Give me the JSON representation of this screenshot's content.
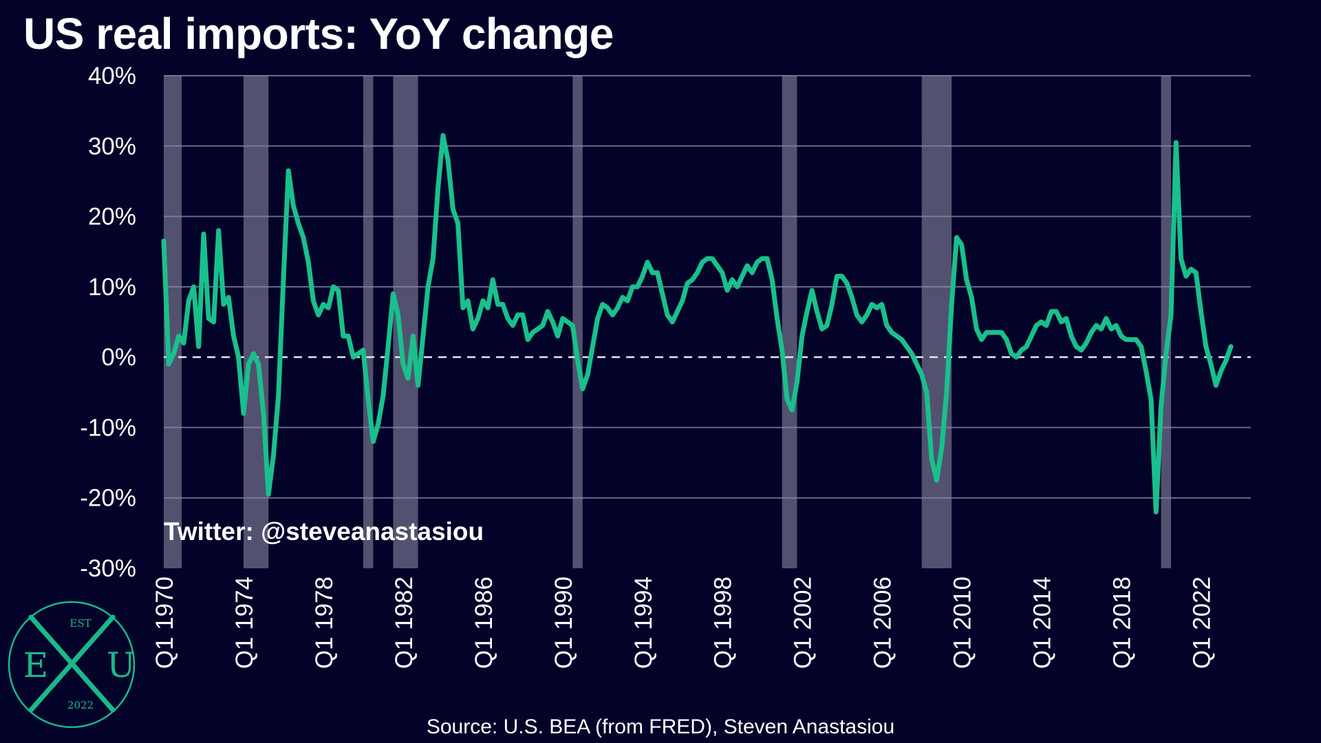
{
  "title": "US real imports: YoY change",
  "watermark": "Twitter: @steveanastasiou",
  "source": "Source: U.S. BEA (from FRED), Steven Anastasiou",
  "logo": {
    "top": "EST",
    "left": "E",
    "center": "X",
    "right": "U",
    "bottom": "2022"
  },
  "colors": {
    "background": "#03032a",
    "line": "#19c08c",
    "recession": "#5b5b78",
    "grid": "#8c8ca8",
    "zero_line": "#e6e6ee"
  },
  "chart_data": {
    "type": "line",
    "title": "US real imports: YoY change",
    "xlabel": "",
    "ylabel": "",
    "ylim": [
      -30,
      40
    ],
    "yticks": [
      40,
      30,
      20,
      10,
      0,
      -10,
      -20,
      -30
    ],
    "ytick_labels": [
      "40%",
      "30%",
      "20%",
      "10%",
      "0%",
      "-10%",
      "-20%",
      "-30%"
    ],
    "xlim": [
      1970.0,
      2024.5
    ],
    "xtick_labels": [
      "Q1 1970",
      "Q1 1974",
      "Q1 1978",
      "Q1 1982",
      "Q1 1986",
      "Q1 1990",
      "Q1 1994",
      "Q1 1998",
      "Q1 2002",
      "Q1 2006",
      "Q1 2010",
      "Q1 2014",
      "Q1 2018",
      "Q1 2022"
    ],
    "grid": true,
    "zero_line": "dashed",
    "recessions": [
      [
        1970.0,
        1970.9
      ],
      [
        1974.0,
        1975.25
      ],
      [
        1980.0,
        1980.5
      ],
      [
        1981.5,
        1982.75
      ],
      [
        1990.5,
        1991.0
      ],
      [
        2001.0,
        2001.75
      ],
      [
        2008.0,
        2009.5
      ],
      [
        2020.0,
        2020.5
      ]
    ],
    "series": [
      {
        "name": "",
        "points": [
          [
            1970.0,
            16.5
          ],
          [
            1970.25,
            -1.0
          ],
          [
            1970.5,
            0.5
          ],
          [
            1970.75,
            3.0
          ],
          [
            1971.0,
            2.0
          ],
          [
            1971.25,
            8.0
          ],
          [
            1971.5,
            10.0
          ],
          [
            1971.75,
            1.5
          ],
          [
            1972.0,
            17.5
          ],
          [
            1972.25,
            5.5
          ],
          [
            1972.5,
            5.0
          ],
          [
            1972.75,
            18.0
          ],
          [
            1973.0,
            7.5
          ],
          [
            1973.25,
            8.5
          ],
          [
            1973.5,
            3.0
          ],
          [
            1973.75,
            0.0
          ],
          [
            1974.0,
            -8.0
          ],
          [
            1974.25,
            -1.0
          ],
          [
            1974.5,
            0.5
          ],
          [
            1974.75,
            -1.0
          ],
          [
            1975.0,
            -8.0
          ],
          [
            1975.25,
            -19.5
          ],
          [
            1975.5,
            -14.0
          ],
          [
            1975.75,
            -5.5
          ],
          [
            1976.0,
            11.0
          ],
          [
            1976.25,
            26.5
          ],
          [
            1976.5,
            21.5
          ],
          [
            1976.75,
            19.0
          ],
          [
            1977.0,
            17.0
          ],
          [
            1977.25,
            13.5
          ],
          [
            1977.5,
            8.0
          ],
          [
            1977.75,
            6.0
          ],
          [
            1978.0,
            7.5
          ],
          [
            1978.25,
            7.0
          ],
          [
            1978.5,
            10.0
          ],
          [
            1978.75,
            9.5
          ],
          [
            1979.0,
            3.0
          ],
          [
            1979.25,
            3.0
          ],
          [
            1979.5,
            0.0
          ],
          [
            1979.75,
            0.5
          ],
          [
            1980.0,
            1.0
          ],
          [
            1980.25,
            -6.0
          ],
          [
            1980.5,
            -12.0
          ],
          [
            1980.75,
            -9.5
          ],
          [
            1981.0,
            -5.5
          ],
          [
            1981.25,
            1.5
          ],
          [
            1981.5,
            9.0
          ],
          [
            1981.75,
            6.0
          ],
          [
            1982.0,
            -1.0
          ],
          [
            1982.25,
            -3.0
          ],
          [
            1982.5,
            3.0
          ],
          [
            1982.75,
            -4.0
          ],
          [
            1983.0,
            3.0
          ],
          [
            1983.25,
            10.0
          ],
          [
            1983.5,
            14.0
          ],
          [
            1983.75,
            24.0
          ],
          [
            1984.0,
            31.5
          ],
          [
            1984.25,
            28.0
          ],
          [
            1984.5,
            21.0
          ],
          [
            1984.75,
            19.0
          ],
          [
            1985.0,
            7.0
          ],
          [
            1985.25,
            8.0
          ],
          [
            1985.5,
            4.0
          ],
          [
            1985.75,
            5.5
          ],
          [
            1986.0,
            8.0
          ],
          [
            1986.25,
            7.0
          ],
          [
            1986.5,
            11.0
          ],
          [
            1986.75,
            7.5
          ],
          [
            1987.0,
            7.5
          ],
          [
            1987.25,
            5.5
          ],
          [
            1987.5,
            4.5
          ],
          [
            1987.75,
            6.0
          ],
          [
            1988.0,
            6.0
          ],
          [
            1988.25,
            2.5
          ],
          [
            1988.5,
            3.5
          ],
          [
            1988.75,
            4.0
          ],
          [
            1989.0,
            4.5
          ],
          [
            1989.25,
            6.5
          ],
          [
            1989.5,
            5.0
          ],
          [
            1989.75,
            3.0
          ],
          [
            1990.0,
            5.5
          ],
          [
            1990.25,
            5.0
          ],
          [
            1990.5,
            4.5
          ],
          [
            1990.75,
            -0.5
          ],
          [
            1991.0,
            -4.5
          ],
          [
            1991.25,
            -2.5
          ],
          [
            1991.5,
            1.5
          ],
          [
            1991.75,
            5.5
          ],
          [
            1992.0,
            7.5
          ],
          [
            1992.25,
            7.0
          ],
          [
            1992.5,
            6.0
          ],
          [
            1992.75,
            7.0
          ],
          [
            1993.0,
            8.5
          ],
          [
            1993.25,
            8.0
          ],
          [
            1993.5,
            10.0
          ],
          [
            1993.75,
            10.0
          ],
          [
            1994.0,
            11.5
          ],
          [
            1994.25,
            13.5
          ],
          [
            1994.5,
            12.0
          ],
          [
            1994.75,
            12.0
          ],
          [
            1995.0,
            9.0
          ],
          [
            1995.25,
            6.0
          ],
          [
            1995.5,
            5.0
          ],
          [
            1995.75,
            6.5
          ],
          [
            1996.0,
            8.0
          ],
          [
            1996.25,
            10.5
          ],
          [
            1996.5,
            11.0
          ],
          [
            1996.75,
            12.0
          ],
          [
            1997.0,
            13.5
          ],
          [
            1997.25,
            14.0
          ],
          [
            1997.5,
            14.0
          ],
          [
            1997.75,
            13.0
          ],
          [
            1998.0,
            12.0
          ],
          [
            1998.25,
            9.5
          ],
          [
            1998.5,
            11.0
          ],
          [
            1998.75,
            10.0
          ],
          [
            1999.0,
            11.5
          ],
          [
            1999.25,
            13.0
          ],
          [
            1999.5,
            12.0
          ],
          [
            1999.75,
            13.5
          ],
          [
            2000.0,
            14.0
          ],
          [
            2000.25,
            14.0
          ],
          [
            2000.5,
            11.0
          ],
          [
            2000.75,
            5.5
          ],
          [
            2001.0,
            1.0
          ],
          [
            2001.25,
            -6.0
          ],
          [
            2001.5,
            -7.5
          ],
          [
            2001.75,
            -3.5
          ],
          [
            2002.0,
            3.0
          ],
          [
            2002.25,
            6.5
          ],
          [
            2002.5,
            9.5
          ],
          [
            2002.75,
            6.5
          ],
          [
            2003.0,
            4.0
          ],
          [
            2003.25,
            4.5
          ],
          [
            2003.5,
            7.5
          ],
          [
            2003.75,
            11.5
          ],
          [
            2004.0,
            11.5
          ],
          [
            2004.25,
            10.5
          ],
          [
            2004.5,
            8.5
          ],
          [
            2004.75,
            6.0
          ],
          [
            2005.0,
            5.0
          ],
          [
            2005.25,
            6.0
          ],
          [
            2005.5,
            7.5
          ],
          [
            2005.75,
            7.0
          ],
          [
            2006.0,
            7.5
          ],
          [
            2006.25,
            4.5
          ],
          [
            2006.5,
            3.5
          ],
          [
            2006.75,
            3.0
          ],
          [
            2007.0,
            2.5
          ],
          [
            2007.25,
            1.5
          ],
          [
            2007.5,
            0.5
          ],
          [
            2007.75,
            -1.0
          ],
          [
            2008.0,
            -2.5
          ],
          [
            2008.25,
            -5.0
          ],
          [
            2008.5,
            -14.5
          ],
          [
            2008.75,
            -17.5
          ],
          [
            2009.0,
            -13.0
          ],
          [
            2009.25,
            -5.0
          ],
          [
            2009.5,
            7.5
          ],
          [
            2009.75,
            17.0
          ],
          [
            2010.0,
            16.0
          ],
          [
            2010.25,
            11.0
          ],
          [
            2010.5,
            8.5
          ],
          [
            2010.75,
            4.0
          ],
          [
            2011.0,
            2.5
          ],
          [
            2011.25,
            3.5
          ],
          [
            2011.5,
            3.5
          ],
          [
            2011.75,
            3.5
          ],
          [
            2012.0,
            3.5
          ],
          [
            2012.25,
            2.5
          ],
          [
            2012.5,
            0.5
          ],
          [
            2012.75,
            0.0
          ],
          [
            2013.0,
            1.0
          ],
          [
            2013.25,
            1.5
          ],
          [
            2013.5,
            3.0
          ],
          [
            2013.75,
            4.5
          ],
          [
            2014.0,
            5.0
          ],
          [
            2014.25,
            4.5
          ],
          [
            2014.5,
            6.5
          ],
          [
            2014.75,
            6.5
          ],
          [
            2015.0,
            5.0
          ],
          [
            2015.25,
            5.5
          ],
          [
            2015.5,
            3.0
          ],
          [
            2015.75,
            1.5
          ],
          [
            2016.0,
            1.0
          ],
          [
            2016.25,
            2.0
          ],
          [
            2016.5,
            3.5
          ],
          [
            2016.75,
            4.5
          ],
          [
            2017.0,
            4.0
          ],
          [
            2017.25,
            5.5
          ],
          [
            2017.5,
            4.0
          ],
          [
            2017.75,
            4.5
          ],
          [
            2018.0,
            3.0
          ],
          [
            2018.25,
            2.5
          ],
          [
            2018.5,
            2.5
          ],
          [
            2018.75,
            2.5
          ],
          [
            2019.0,
            1.5
          ],
          [
            2019.25,
            -2.0
          ],
          [
            2019.5,
            -6.0
          ],
          [
            2019.75,
            -22.0
          ],
          [
            2020.0,
            -7.0
          ],
          [
            2020.25,
            0.5
          ],
          [
            2020.5,
            6.0
          ],
          [
            2020.75,
            30.5
          ],
          [
            2021.0,
            14.0
          ],
          [
            2021.25,
            11.5
          ],
          [
            2021.5,
            12.5
          ],
          [
            2021.75,
            12.0
          ],
          [
            2022.0,
            6.5
          ],
          [
            2022.25,
            1.5
          ],
          [
            2022.5,
            -1.0
          ],
          [
            2022.75,
            -4.0
          ],
          [
            2023.0,
            -2.0
          ],
          [
            2023.25,
            -0.5
          ],
          [
            2023.5,
            1.5
          ]
        ]
      }
    ]
  }
}
